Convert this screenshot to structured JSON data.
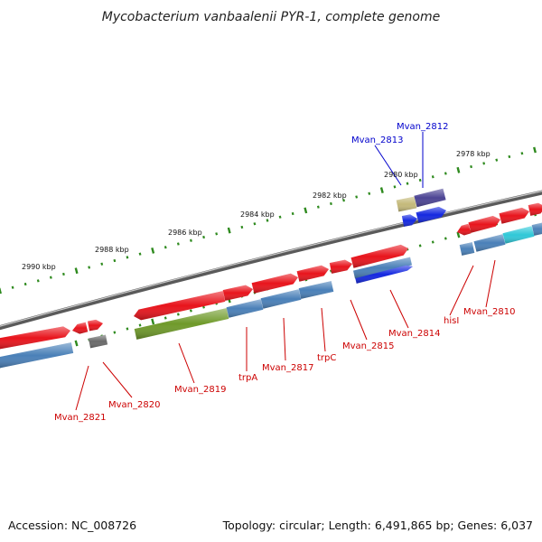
{
  "title": "Mycobacterium vanbaalenii PYR-1, complete genome",
  "footer": {
    "accession": "Accession: NC_008726",
    "summary": "Topology: circular; Length: 6,491,865 bp; Genes: 6,037"
  },
  "colors": {
    "gene_red": "#e8141c",
    "cds_blue": "#4a80b8",
    "strand_blue": "#1428e0",
    "olive": "#6f9a2a",
    "khaki": "#c4b97a",
    "purple": "#4c4494",
    "cyan": "#30c8d8",
    "gray": "#6a6a6a",
    "backbone": "#8a8a8a",
    "tick_green": "#2e8a1e",
    "label_red": "#cc0000",
    "label_blue": "#0000cc"
  },
  "kbp_labels": [
    {
      "id": "2990",
      "text": "2990 kbp"
    },
    {
      "id": "2988",
      "text": "2988 kbp"
    },
    {
      "id": "2986",
      "text": "2986 kbp"
    },
    {
      "id": "2984",
      "text": "2984 kbp"
    },
    {
      "id": "2982",
      "text": "2982 kbp"
    },
    {
      "id": "2980",
      "text": "2980 kbp"
    },
    {
      "id": "2978",
      "text": "2978 kbp"
    }
  ],
  "gene_labels": [
    {
      "id": "mvan_2812",
      "text": "Mvan_2812",
      "color": "blue"
    },
    {
      "id": "mvan_2813",
      "text": "Mvan_2813",
      "color": "blue"
    },
    {
      "id": "mvan_2810",
      "text": "Mvan_2810",
      "color": "red"
    },
    {
      "id": "hisi",
      "text": "hisI",
      "color": "red"
    },
    {
      "id": "mvan_2814",
      "text": "Mvan_2814",
      "color": "red"
    },
    {
      "id": "mvan_2815",
      "text": "Mvan_2815",
      "color": "red"
    },
    {
      "id": "trpc",
      "text": "trpC",
      "color": "red"
    },
    {
      "id": "mvan_2817",
      "text": "Mvan_2817",
      "color": "red"
    },
    {
      "id": "trpa",
      "text": "trpA",
      "color": "red"
    },
    {
      "id": "mvan_2819",
      "text": "Mvan_2819",
      "color": "red"
    },
    {
      "id": "mvan_2820",
      "text": "Mvan_2820",
      "color": "red"
    },
    {
      "id": "mvan_2821",
      "text": "Mvan_2821",
      "color": "red"
    }
  ]
}
